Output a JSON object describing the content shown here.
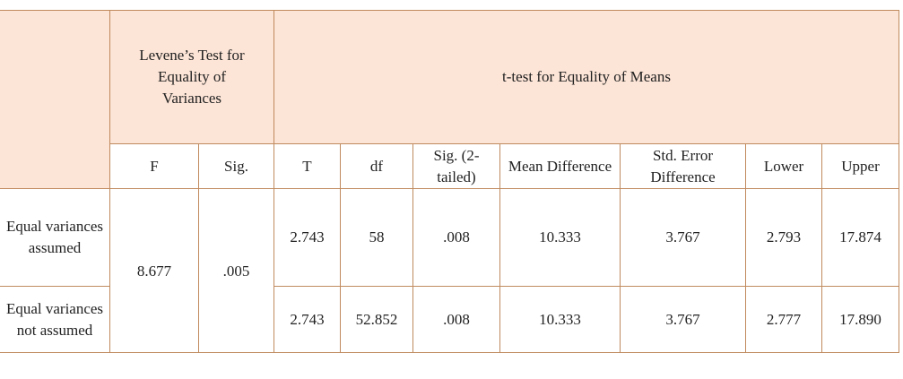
{
  "header": {
    "levene": "Levene’s Test for Equality of Variances",
    "ttest": "t-test for Equality of Means"
  },
  "columns": [
    "F",
    "Sig.",
    "T",
    "df",
    "Sig. (2-tailed)",
    "Mean Difference",
    "Std. Error Difference",
    "Lower",
    "Upper"
  ],
  "levene_values": {
    "F": "8.677",
    "sig": ".005"
  },
  "rows": [
    {
      "label": "Equal variances assumed",
      "cells": [
        "2.743",
        "58",
        ".008",
        "10.333",
        "3.767",
        "2.793",
        "17.874"
      ]
    },
    {
      "label": "Equal variances not assumed",
      "cells": [
        "2.743",
        "52.852",
        ".008",
        "10.333",
        "3.767",
        "2.777",
        "17.890"
      ]
    }
  ]
}
